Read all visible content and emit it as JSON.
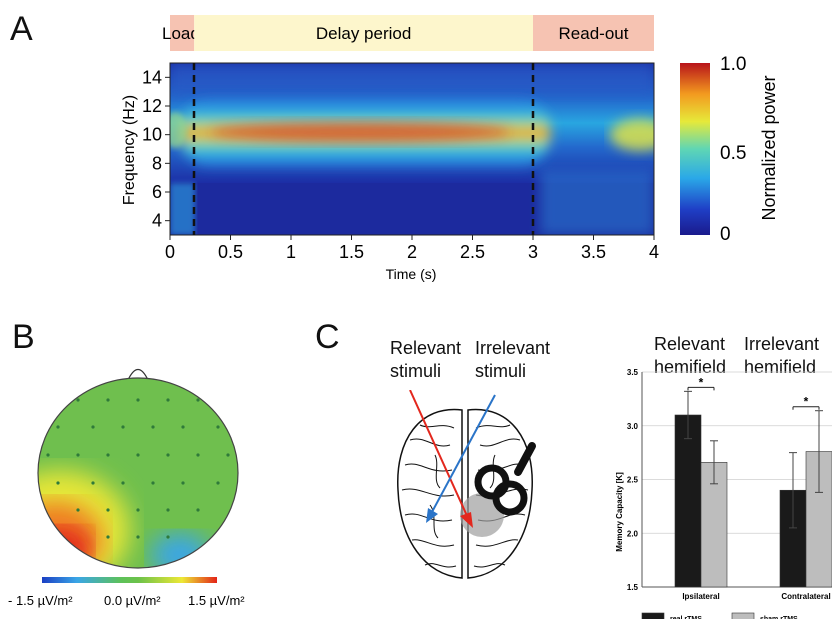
{
  "panels": {
    "a": {
      "letter": "A",
      "phases": [
        {
          "label": "Load",
          "start": 0,
          "end": 0.2,
          "color": "#f6c3b2"
        },
        {
          "label": "Delay period",
          "start": 0.2,
          "end": 3.0,
          "color": "#fdf6cc"
        },
        {
          "label": "Read-out",
          "start": 3.0,
          "end": 4.0,
          "color": "#f6c3b2"
        }
      ],
      "xlabel": "Time (s)",
      "ylabel": "Frequency (Hz)",
      "xticks": [
        "0",
        "0.5",
        "1",
        "1.5",
        "2",
        "2.5",
        "3",
        "3.5",
        "4"
      ],
      "yticks": [
        "4",
        "6",
        "8",
        "10",
        "12",
        "14"
      ],
      "colorbar": {
        "label": "Normalized power",
        "ticks": [
          "1.0",
          "0.5",
          "0"
        ]
      }
    },
    "b": {
      "letter": "B",
      "scale_labels": [
        "- 1.5 µV/m²",
        "0.0 µV/m²",
        "1.5 µV/m²"
      ]
    },
    "c": {
      "letter": "C",
      "stim_labels": {
        "relevant": "Relevant\nstimuli",
        "irrelevant": "Irrelevant\nstimuli"
      },
      "hemi_labels": {
        "relevant": "Relevant\nhemifield",
        "irrelevant": "Irrelevant\nhemifield"
      },
      "significance": "*",
      "legend": [
        {
          "label": "real rTMS",
          "color": "#1a1a1a"
        },
        {
          "label": "sham rTMS",
          "color": "#bdbdbd"
        }
      ]
    }
  },
  "chart_data": [
    {
      "type": "heatmap",
      "xlabel": "Time (s)",
      "ylabel": "Frequency (Hz)",
      "xlim": [
        0,
        4
      ],
      "ylim": [
        3,
        15
      ],
      "zlim": [
        0,
        1
      ],
      "x": [
        0,
        0.5,
        1,
        1.5,
        2,
        2.5,
        3,
        3.5,
        4
      ],
      "y": [
        4,
        6,
        8,
        10,
        12,
        14
      ],
      "series": [
        {
          "values": [
            [
              0.05,
              0.05,
              0.05,
              0.05,
              0.05,
              0.05,
              0.05,
              0.05,
              0.05
            ],
            [
              0.3,
              0.1,
              0.1,
              0.1,
              0.1,
              0.1,
              0.1,
              0.25,
              0.3
            ],
            [
              0.35,
              0.55,
              0.6,
              0.6,
              0.6,
              0.6,
              0.5,
              0.3,
              0.35
            ],
            [
              0.45,
              0.75,
              0.9,
              0.95,
              0.9,
              0.9,
              0.8,
              0.3,
              0.55
            ],
            [
              0.35,
              0.55,
              0.6,
              0.6,
              0.6,
              0.6,
              0.5,
              0.3,
              0.35
            ],
            [
              0.3,
              0.15,
              0.15,
              0.15,
              0.15,
              0.15,
              0.15,
              0.3,
              0.3
            ]
          ]
        }
      ]
    },
    {
      "type": "bar",
      "ylabel": "Memory Capacity [K]",
      "ylim": [
        1.5,
        3.5
      ],
      "yticks": [
        "1.5",
        "2.0",
        "2.5",
        "3.0",
        "3.5"
      ],
      "categories": [
        "Ipsilateral",
        "Contralateral"
      ],
      "series": [
        {
          "name": "real rTMS",
          "values": [
            3.1,
            2.4
          ],
          "errors": [
            0.22,
            0.35
          ]
        },
        {
          "name": "sham rTMS",
          "values": [
            2.66,
            2.76
          ],
          "errors": [
            0.2,
            0.38
          ]
        }
      ]
    }
  ]
}
